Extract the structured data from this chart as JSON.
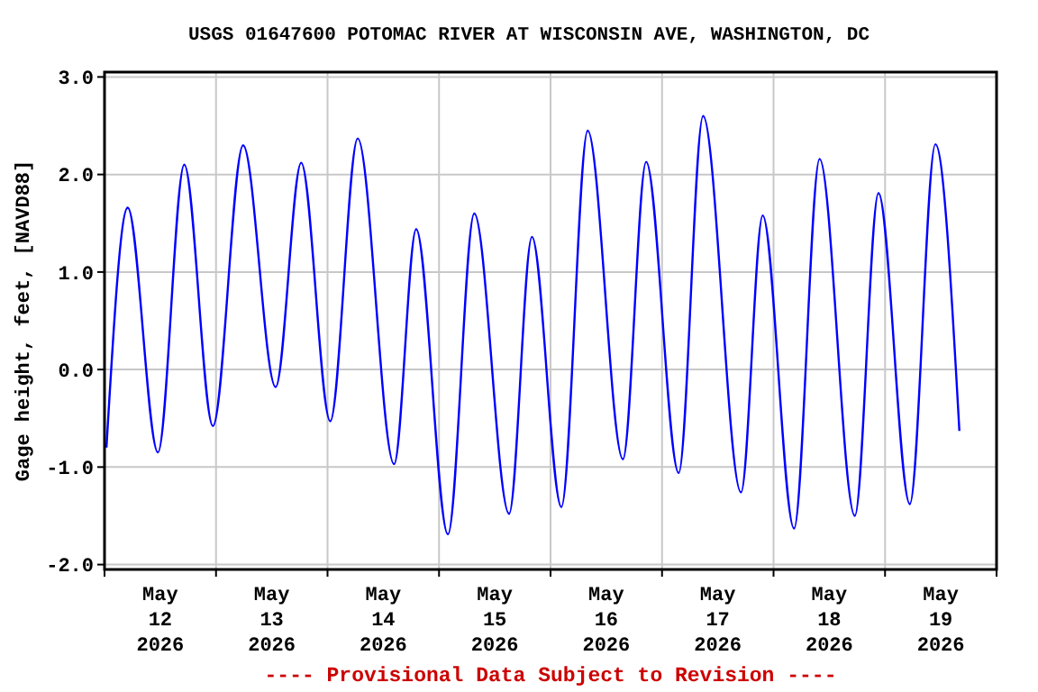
{
  "chart_data": {
    "type": "line",
    "title": "USGS 01647600 POTOMAC RIVER AT WISCONSIN AVE, WASHINGTON, DC",
    "ylabel": "Gage height, feet, [NAVD88]",
    "annotations": [
      "---- Provisional Data Subject to Revision ----"
    ],
    "x": [
      "2026-05-12T00:25",
      "2026-05-12T05:00",
      "2026-05-12T11:30",
      "2026-05-12T17:10",
      "2026-05-12T23:20",
      "2026-05-13T05:50",
      "2026-05-13T12:50",
      "2026-05-13T18:20",
      "2026-05-14T00:35",
      "2026-05-14T06:30",
      "2026-05-14T14:20",
      "2026-05-14T19:05",
      "2026-05-15T01:55",
      "2026-05-15T07:35",
      "2026-05-15T15:05",
      "2026-05-15T20:00",
      "2026-05-16T02:20",
      "2026-05-16T08:00",
      "2026-05-16T15:35",
      "2026-05-16T20:35",
      "2026-05-17T03:35",
      "2026-05-17T08:50",
      "2026-05-17T17:00",
      "2026-05-17T21:40",
      "2026-05-18T04:25",
      "2026-05-18T09:55",
      "2026-05-18T17:30",
      "2026-05-18T22:35",
      "2026-05-19T05:20",
      "2026-05-19T10:50",
      "2026-05-19T16:00"
    ],
    "series": [
      {
        "color": "#0000ff",
        "values": [
          -0.8,
          1.66,
          -0.85,
          2.1,
          -0.58,
          2.3,
          -0.18,
          2.12,
          -0.53,
          2.37,
          -0.97,
          1.44,
          -1.69,
          1.6,
          -1.48,
          1.36,
          -1.41,
          2.45,
          -0.92,
          2.13,
          -1.06,
          2.6,
          -1.26,
          1.58,
          -1.63,
          2.16,
          -1.5,
          1.81,
          -1.38,
          2.31,
          -0.63
        ]
      }
    ],
    "xlim": [
      "2026-05-12T00:00",
      "2026-05-20T00:00"
    ],
    "xticks": [
      {
        "value": "2026-05-12T00:00",
        "label": null
      },
      {
        "value": "2026-05-12T12:00",
        "label": "May\n12\n2026"
      },
      {
        "value": "2026-05-13T00:00",
        "label": null
      },
      {
        "value": "2026-05-13T12:00",
        "label": "May\n13\n2026"
      },
      {
        "value": "2026-05-14T00:00",
        "label": null
      },
      {
        "value": "2026-05-14T12:00",
        "label": "May\n14\n2026"
      },
      {
        "value": "2026-05-15T00:00",
        "label": null
      },
      {
        "value": "2026-05-15T12:00",
        "label": "May\n15\n2026"
      },
      {
        "value": "2026-05-16T00:00",
        "label": null
      },
      {
        "value": "2026-05-16T12:00",
        "label": "May\n16\n2026"
      },
      {
        "value": "2026-05-17T00:00",
        "label": null
      },
      {
        "value": "2026-05-17T12:00",
        "label": "May\n17\n2026"
      },
      {
        "value": "2026-05-18T00:00",
        "label": null
      },
      {
        "value": "2026-05-18T12:00",
        "label": "May\n18\n2026"
      },
      {
        "value": "2026-05-19T00:00",
        "label": null
      },
      {
        "value": "2026-05-19T12:00",
        "label": "May\n19\n2026"
      },
      {
        "value": "2026-05-20T00:00",
        "label": null
      }
    ],
    "ylim": [
      -2.05,
      3.05
    ],
    "yticks": [
      {
        "value": -2,
        "label": "-2.0"
      },
      {
        "value": -1,
        "label": "-1.0"
      },
      {
        "value": 0,
        "label": "0.0"
      },
      {
        "value": 1,
        "label": "1.0"
      },
      {
        "value": 2,
        "label": "2.0"
      },
      {
        "value": 3,
        "label": "3.0"
      }
    ],
    "grid": true,
    "marker": "none",
    "line_style": "solid"
  }
}
